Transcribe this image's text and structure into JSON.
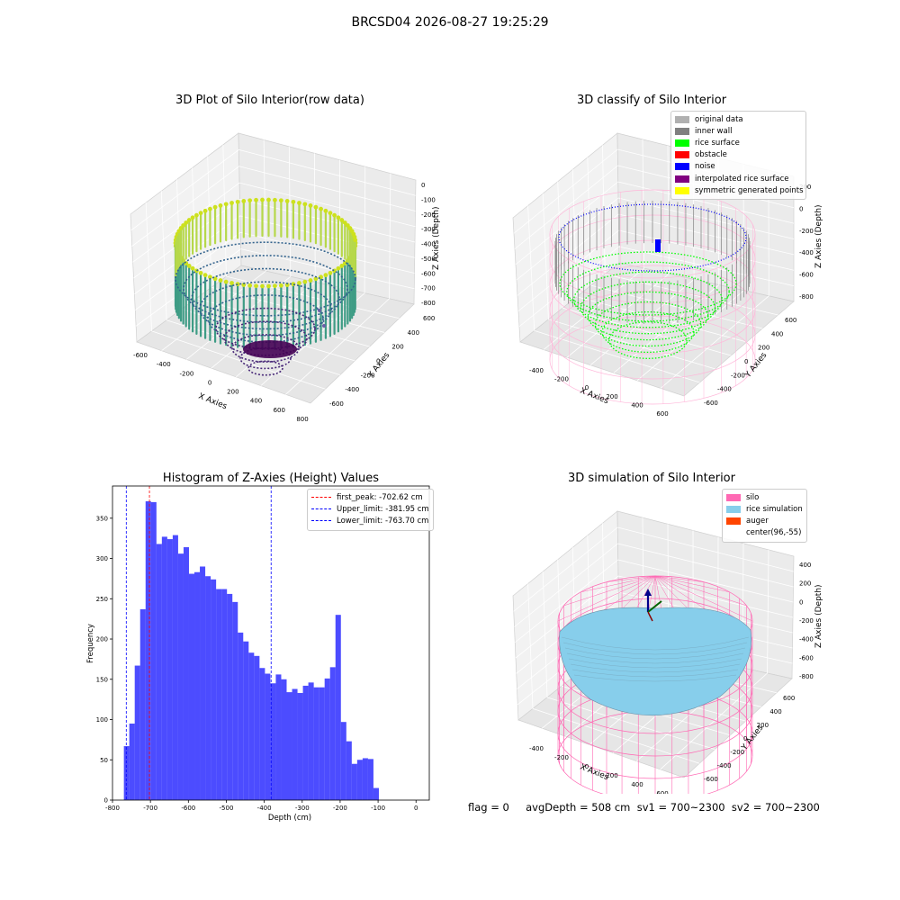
{
  "suptitle": "BRCSD04 2026-08-27 19:25:29",
  "panels": {
    "raw": {
      "title": "3D Plot of Silo Interior(row data)",
      "xlabel": "X Axies",
      "ylabel": "Y Axies",
      "zlabel": "Z Axies (Depth)",
      "x_ticks": [
        "-600",
        "-400",
        "-200",
        "0",
        "200",
        "400",
        "600",
        "800"
      ],
      "y_ticks": [
        "-600",
        "-400",
        "-200",
        "0",
        "200",
        "400",
        "600"
      ],
      "z_ticks": [
        "0",
        "-100",
        "-200",
        "-300",
        "-400",
        "-500",
        "-600",
        "-700",
        "-800"
      ]
    },
    "classify": {
      "title": "3D classify of Silo Interior",
      "xlabel": "X Axies",
      "ylabel": "Y Axies",
      "zlabel": "Z Axies (Depth)",
      "x_ticks": [
        "-400",
        "-200",
        "0",
        "200",
        "400",
        "600"
      ],
      "y_ticks": [
        "-600",
        "-400",
        "-200",
        "0",
        "200",
        "400",
        "600"
      ],
      "z_ticks": [
        "200",
        "0",
        "-200",
        "-400",
        "-600",
        "-800"
      ],
      "legend": [
        {
          "label": "original data",
          "color": "#b0b0b0"
        },
        {
          "label": "inner wall",
          "color": "#808080"
        },
        {
          "label": "rice surface",
          "color": "#00ff00"
        },
        {
          "label": "obstacle",
          "color": "#ff0000"
        },
        {
          "label": "noise",
          "color": "#0000ff"
        },
        {
          "label": "interpolated rice surface",
          "color": "#800080"
        },
        {
          "label": "symmetric generated points",
          "color": "#ffff00"
        }
      ]
    },
    "simulation": {
      "title": "3D simulation of Silo Interior",
      "xlabel": "X Axies",
      "ylabel": "Y Axies",
      "zlabel": "Z Axies (Depth)",
      "x_ticks": [
        "-400",
        "-200",
        "0",
        "200",
        "400",
        "600"
      ],
      "y_ticks": [
        "-600",
        "-400",
        "-200",
        "0",
        "200",
        "400",
        "600"
      ],
      "z_ticks": [
        "400",
        "200",
        "0",
        "-200",
        "-400",
        "-600",
        "-800"
      ],
      "legend": [
        {
          "label": "silo",
          "color": "#ff69b4"
        },
        {
          "label": "rice simulation",
          "color": "#87ceeb"
        },
        {
          "label": "auger",
          "color": "#ff4500"
        },
        {
          "label": "center(96,-55)",
          "color": ""
        }
      ]
    }
  },
  "chart_data": {
    "type": "bar",
    "title": "Histogram of Z-Axies (Height) Values",
    "xlabel": "Depth (cm)",
    "ylabel": "Frequency",
    "xlim": [
      -800,
      35
    ],
    "ylim": [
      0,
      390
    ],
    "x_ticks": [
      -800,
      -700,
      -600,
      -500,
      -400,
      -300,
      -200,
      -100,
      0
    ],
    "y_ticks": [
      0,
      50,
      100,
      150,
      200,
      250,
      300,
      350
    ],
    "bin_start": -770,
    "bin_width": 14.3,
    "values": [
      67,
      95,
      167,
      237,
      371,
      370,
      318,
      327,
      324,
      329,
      306,
      314,
      281,
      283,
      290,
      278,
      274,
      262,
      262,
      256,
      246,
      208,
      197,
      183,
      179,
      164,
      157,
      145,
      156,
      150,
      134,
      138,
      133,
      142,
      146,
      140,
      140,
      151,
      165,
      230,
      97,
      73,
      45,
      50,
      52,
      51,
      15
    ],
    "bar_color": "#0000ff",
    "vlines": [
      {
        "label": "first_peak: -702.62 cm",
        "x": -702.62,
        "color": "#ff0000"
      },
      {
        "label": "Upper_limit: -381.95 cm",
        "x": -381.95,
        "color": "#0000ff"
      },
      {
        "label": "Lower_limit: -763.70 cm",
        "x": -763.7,
        "color": "#0000ff"
      }
    ]
  },
  "status_text": "flag = 0     avgDepth = 508 cm  sv1 = 700~2300  sv2 = 700~2300"
}
